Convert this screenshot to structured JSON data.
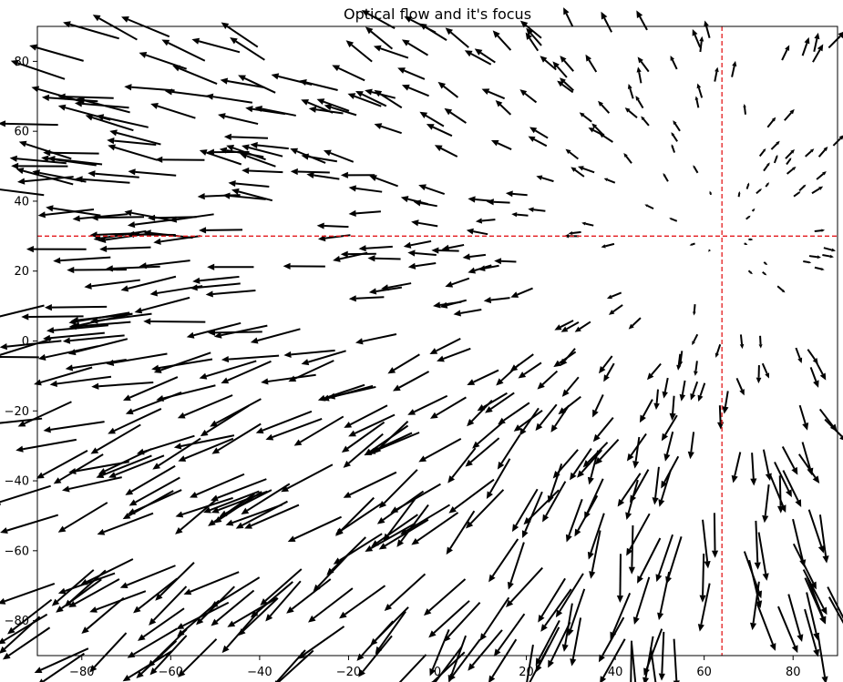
{
  "chart_data": {
    "type": "quiver",
    "title": "Optical flow and it's focus",
    "xlabel": "",
    "ylabel": "",
    "xlim": [
      -90,
      90
    ],
    "ylim": [
      -90,
      90
    ],
    "x_ticks": [
      -80,
      -60,
      -40,
      -20,
      0,
      20,
      40,
      60,
      80
    ],
    "y_ticks": [
      -80,
      -60,
      -40,
      -20,
      0,
      20,
      40,
      60,
      80
    ],
    "grid": false,
    "focus_of_expansion": {
      "x": 64,
      "y": 30
    },
    "vector_field": {
      "description_units": "data",
      "grid_x_range": [
        -90,
        90
      ],
      "grid_y_range": [
        -90,
        90
      ],
      "approx_count": 600,
      "field_model": "radial expansion away from focus with perspective noise"
    },
    "colors": {
      "arrows": "#000000",
      "focus_lines": "#e41a1c",
      "axes": "#000000"
    }
  }
}
